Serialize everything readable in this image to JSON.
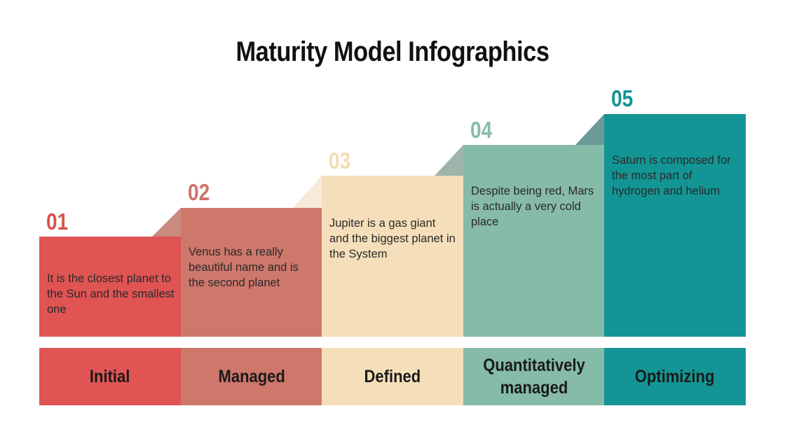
{
  "title": "Maturity Model Infographics",
  "steps": [
    {
      "number": "01",
      "text": "It is the closest planet to the Sun and the smallest one",
      "label": "Initial",
      "color": "#e05454",
      "shade": "#c98a80",
      "numColor": "#d9534f"
    },
    {
      "number": "02",
      "text": "Venus has a really beautiful name and is the second planet",
      "label": "Managed",
      "color": "#ce776b",
      "shade": "#f7ead8",
      "numColor": "#cd7366"
    },
    {
      "number": "03",
      "text": "Jupiter is a gas giant and the biggest planet in the System",
      "label": "Defined",
      "color": "#f5dfba",
      "shade": "#9db5ab",
      "numColor": "#f3dcb6"
    },
    {
      "number": "04",
      "text": "Despite being red, Mars is actually a very cold place",
      "label": "Quantitatively managed",
      "color": "#86bba8",
      "shade": "#6a9a9a",
      "numColor": "#86bba8"
    },
    {
      "number": "05",
      "text": "Saturn is composed for the most part of hydrogen and helium",
      "label": "Optimizing",
      "color": "#129594",
      "shade": "",
      "numColor": "#129594"
    }
  ]
}
